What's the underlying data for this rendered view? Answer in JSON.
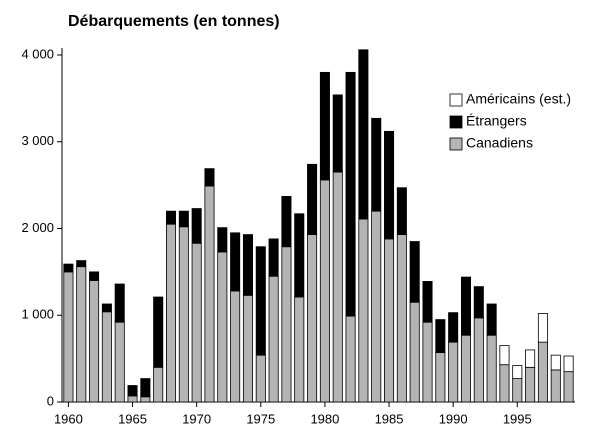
{
  "chart_data": {
    "type": "stacked_bar",
    "title": "Débarquements (en tonnes)",
    "categories": [
      "1960",
      null,
      null,
      null,
      null,
      "1965",
      null,
      null,
      null,
      null,
      "1970",
      null,
      null,
      null,
      null,
      "1975",
      null,
      null,
      null,
      null,
      "1980",
      null,
      null,
      null,
      null,
      "1985",
      null,
      null,
      null,
      null,
      "1990",
      null,
      null,
      null,
      null,
      "1995",
      null,
      null,
      null,
      null
    ],
    "series": [
      {
        "name": "Canadiens",
        "color": "#b4b4b4",
        "values": [
          1500,
          1560,
          1400,
          1040,
          920,
          70,
          60,
          400,
          2050,
          2020,
          1830,
          2490,
          1730,
          1280,
          1230,
          540,
          1450,
          1790,
          1210,
          1930,
          2560,
          2650,
          990,
          2110,
          2200,
          1880,
          1930,
          1150,
          920,
          570,
          690,
          770,
          970,
          770,
          430,
          270,
          400,
          690,
          370,
          350
        ]
      },
      {
        "name": "Étrangers",
        "color": "#000000",
        "values": [
          90,
          70,
          100,
          90,
          440,
          120,
          210,
          810,
          150,
          180,
          400,
          200,
          280,
          670,
          700,
          1250,
          430,
          580,
          960,
          810,
          1240,
          890,
          2810,
          1950,
          1070,
          1240,
          540,
          700,
          470,
          380,
          340,
          670,
          360,
          360,
          0,
          0,
          0,
          0,
          0,
          0
        ]
      },
      {
        "name": "Américains (est.)",
        "color": "#ffffff",
        "values": [
          0,
          0,
          0,
          0,
          0,
          0,
          0,
          0,
          0,
          0,
          0,
          0,
          0,
          0,
          0,
          0,
          0,
          0,
          0,
          0,
          0,
          0,
          0,
          0,
          0,
          0,
          0,
          0,
          0,
          0,
          0,
          0,
          0,
          0,
          220,
          150,
          200,
          330,
          170,
          180
        ]
      }
    ],
    "ylim": [
      0,
      4000
    ],
    "yticks": [
      0,
      {
        "value": 1000,
        "label": "1 000"
      },
      {
        "value": 2000,
        "label": "2 000"
      },
      {
        "value": 3000,
        "label": "3 000"
      },
      {
        "value": 4000,
        "label": "4 000"
      }
    ],
    "grid": false,
    "legend": "right"
  }
}
